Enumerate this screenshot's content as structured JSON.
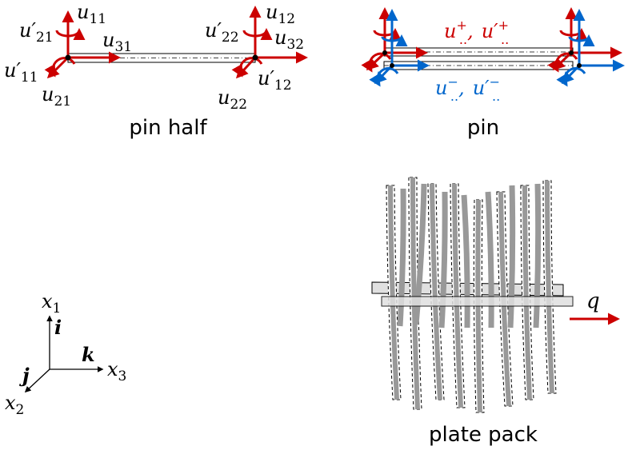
{
  "panels": {
    "pin_half": {
      "caption": "pin half",
      "u11": {
        "base": "u",
        "sub": "11"
      },
      "u12": {
        "base": "u",
        "sub": "12"
      },
      "u21p": {
        "base": "u′",
        "sub": "21"
      },
      "u22p": {
        "base": "u′",
        "sub": "22"
      },
      "u31": {
        "base": "u",
        "sub": "31"
      },
      "u32": {
        "base": "u",
        "sub": "32"
      },
      "u11p": {
        "base": "u′",
        "sub": "11"
      },
      "u12p": {
        "base": "u′",
        "sub": "12"
      },
      "u21": {
        "base": "u",
        "sub": "21"
      },
      "u22": {
        "base": "u",
        "sub": "22"
      }
    },
    "pin": {
      "caption": "pin",
      "upper_label": {
        "u": "u",
        "u_sup": "+",
        "u_sub": "..",
        "sep": ",",
        "up": "u′",
        "up_sup": "+",
        "up_sub": ".."
      },
      "lower_label": {
        "u": "u",
        "u_sup": "−",
        "u_sub": "..",
        "sep": ",",
        "up": "u′",
        "up_sup": "−",
        "up_sub": ".."
      }
    },
    "axes": {
      "x1": {
        "base": "x",
        "sub": "1"
      },
      "x2": {
        "base": "x",
        "sub": "2"
      },
      "x3": {
        "base": "x",
        "sub": "3"
      },
      "i": "i",
      "j": "j",
      "k": "k"
    },
    "plate_pack": {
      "caption": "plate pack",
      "load_label": "q"
    }
  },
  "colors": {
    "red": "#cc0000",
    "blue": "#0066cc",
    "gray": "#999999",
    "black": "#000000"
  }
}
